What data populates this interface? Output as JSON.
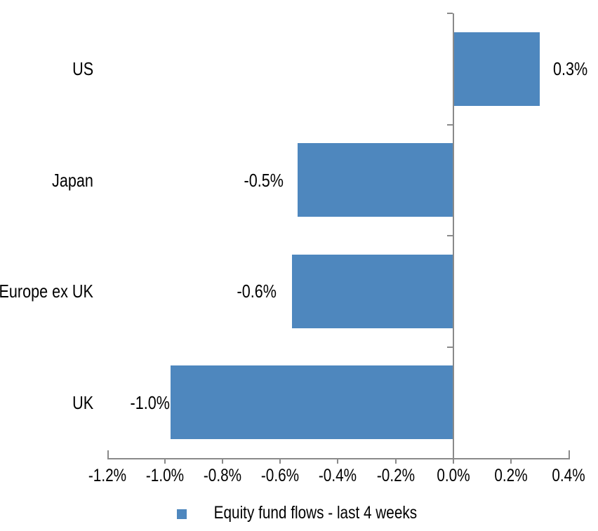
{
  "chart_data": {
    "type": "bar",
    "orientation": "horizontal",
    "title": "",
    "categories": [
      "US",
      "Japan",
      "Europe ex UK",
      "UK"
    ],
    "series": [
      {
        "name": "Equity fund flows - last 4 weeks",
        "values": [
          0.3,
          -0.5,
          -0.6,
          -1.0
        ],
        "values_precise": [
          0.3,
          -0.54,
          -0.56,
          -0.98
        ],
        "data_labels": [
          "0.3%",
          "-0.5%",
          "-0.6%",
          "-1.0%"
        ]
      }
    ],
    "x_axis": {
      "min": -1.2,
      "max": 0.4,
      "unit": "%",
      "tick_values": [
        -1.2,
        -1.0,
        -0.8,
        -0.6,
        -0.4,
        -0.2,
        0.0,
        0.2,
        0.4
      ],
      "tick_labels": [
        "-1.2%",
        "-1.0%",
        "-0.8%",
        "-0.6%",
        "-0.4%",
        "-0.2%",
        "0.0%",
        "0.2%",
        "0.4%"
      ]
    },
    "grid": false,
    "legend_position": "bottom",
    "colors": {
      "bar": "#4E87BE",
      "axis": "#8A8A8A",
      "text": "#000000",
      "background": "#FFFFFF"
    }
  },
  "legend": {
    "label": "Equity fund flows - last 4 weeks"
  }
}
